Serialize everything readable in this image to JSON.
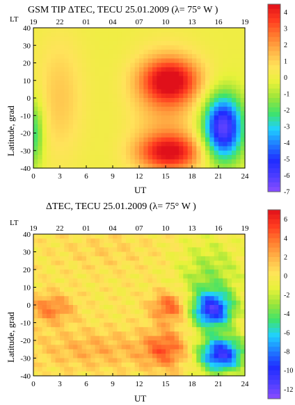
{
  "colors": {
    "scale": [
      "#8a4dff",
      "#4b3dff",
      "#1f2cff",
      "#1f7bff",
      "#1fd0ff",
      "#3fe36b",
      "#9be53a",
      "#e8f23a",
      "#ffe35a",
      "#ffb347",
      "#ff7a2e",
      "#ff3a1f",
      "#e0101a"
    ]
  },
  "chart_data": [
    {
      "type": "heatmap",
      "title": "GSM TIP ΔTEC, TECU   25.01.2009 (λ= 75° W  )",
      "xlabel": "UT",
      "ylabel": "Latitude, grad",
      "lt_label": "LT",
      "lt_ticks": [
        "19",
        "22",
        "01",
        "04",
        "07",
        "10",
        "13",
        "16",
        "19"
      ],
      "x_ticks": [
        "0",
        "3",
        "6",
        "9",
        "12",
        "15",
        "18",
        "21",
        "24"
      ],
      "y_ticks": [
        "40",
        "30",
        "20",
        "10",
        "0",
        "-10",
        "-20",
        "-30",
        "-40"
      ],
      "xlim": [
        0,
        24
      ],
      "ylim": [
        -40,
        40
      ],
      "colorbar": {
        "labels": [
          "4",
          "3",
          "2",
          "1",
          "0",
          "-1",
          "-2",
          "-3",
          "-4",
          "-5",
          "-6",
          "-7"
        ],
        "min": -7,
        "max": 4.5
      },
      "blobs": [
        {
          "x": 15.5,
          "y": 10,
          "sx": 2.4,
          "sy": 9,
          "amp": 4.2
        },
        {
          "x": 15.5,
          "y": -31,
          "sx": 2.6,
          "sy": 7,
          "amp": 3.8
        },
        {
          "x": 21.5,
          "y": -17,
          "sx": 1.6,
          "sy": 13,
          "amp": -6.5
        },
        {
          "x": 0.1,
          "y": -20,
          "sx": 0.8,
          "sy": 14,
          "amp": -2.5
        },
        {
          "x": 3.0,
          "y": 0,
          "sx": 2.0,
          "sy": 25,
          "amp": 1.2
        },
        {
          "x": 15.0,
          "y": -10,
          "sx": 2.8,
          "sy": 25,
          "amp": 1.5
        }
      ]
    },
    {
      "type": "heatmap",
      "title": "ΔTEC, TECU   25.01.2009 (λ= 75° W  )",
      "xlabel": "UT",
      "ylabel": "Latitude, grad",
      "lt_label": "LT",
      "lt_ticks": [
        "19",
        "22",
        "01",
        "04",
        "07",
        "10",
        "13",
        "16",
        "19"
      ],
      "x_ticks": [
        "0",
        "3",
        "6",
        "9",
        "12",
        "15",
        "18",
        "21",
        "24"
      ],
      "y_ticks": [
        "40",
        "30",
        "20",
        "10",
        "0",
        "-10",
        "-20",
        "-30",
        "-40"
      ],
      "xlim": [
        0,
        24
      ],
      "ylim": [
        -40,
        40
      ],
      "colorbar": {
        "labels": [
          "6",
          "4",
          "2",
          "0",
          "-2",
          "-4",
          "-6",
          "-8",
          "-10",
          "-12"
        ],
        "min": -13,
        "max": 7
      },
      "blobs": [
        {
          "x": 15.5,
          "y": -1,
          "sx": 1.5,
          "sy": 6,
          "amp": 4.5
        },
        {
          "x": 15.0,
          "y": -25,
          "sx": 1.8,
          "sy": 8,
          "amp": 4.0
        },
        {
          "x": 2.0,
          "y": -2,
          "sx": 1.8,
          "sy": 6,
          "amp": 3.5
        },
        {
          "x": 20.3,
          "y": -3,
          "sx": 1.6,
          "sy": 7,
          "amp": -9.5
        },
        {
          "x": 21.3,
          "y": -28,
          "sx": 1.8,
          "sy": 7,
          "amp": -10.5
        },
        {
          "x": 20.0,
          "y": 15,
          "sx": 2.5,
          "sy": 15,
          "amp": -3.0
        },
        {
          "x": 7.0,
          "y": -25,
          "sx": 5.0,
          "sy": 8,
          "amp": 2.0
        },
        {
          "x": 8.0,
          "y": 30,
          "sx": 4.0,
          "sy": 8,
          "amp": 0.8
        }
      ]
    }
  ]
}
